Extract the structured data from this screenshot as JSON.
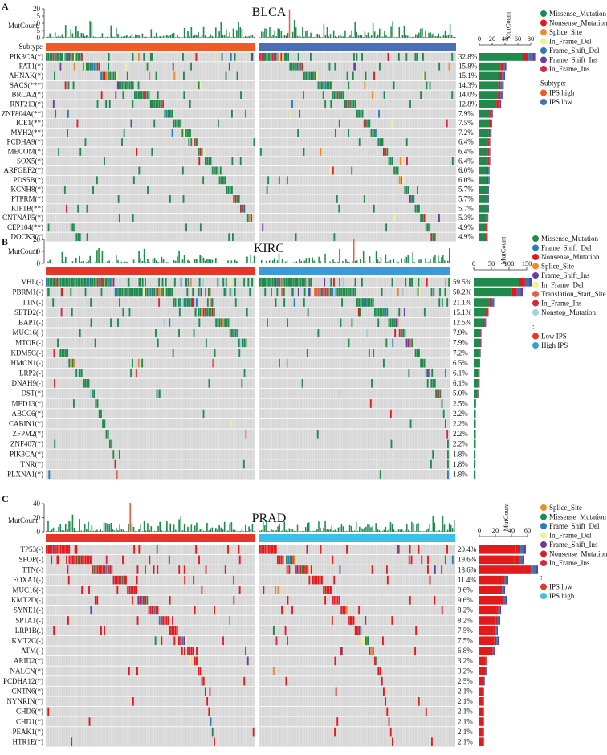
{
  "mutation_colors": {
    "Missense_Mutation": "#1f8a4c",
    "Nonsense_Mutation": "#e31a1c",
    "Splice_Site": "#f08a24",
    "In_Frame_Del": "#f2ef9a",
    "Frame_Shift_Del": "#2b7bba",
    "Frame_Shift_Ins": "#6a3d9a",
    "In_Frame_Ins": "#d7263d",
    "Translation_Start_Site": "#e0624d",
    "Nonstop_Mutation": "#a6cee3"
  },
  "chart_data": [
    {
      "type": "table",
      "panel": "A",
      "title": "BLCA",
      "mutcount_label": "MutCount",
      "mutcount_ticks": [
        "20",
        "15",
        "10",
        "5",
        "0"
      ],
      "subtype_label": "Subtype",
      "groups": [
        {
          "name": "IPS high",
          "color": "#f05a24"
        },
        {
          "name": "IPS low",
          "color": "#4a6fb8"
        }
      ],
      "genes": [
        "PIK3CA(*)",
        "FAT1(*)",
        "AHNAK(*)",
        "SACS(***)",
        "BRCA2(*)",
        "RNF213(*)",
        "ZNF804A(**)",
        "ICE1(**)",
        "MYH2(**)",
        "PCDHA9(*)",
        "MECOM(*)",
        "SOX5(*)",
        "ARFGEF2(*)",
        "PDS5B(*)",
        "KCNH8(*)",
        "PTPRM(*)",
        "KIF1B(**)",
        "CNTNAP5(*)",
        "CEP104(**)",
        "DOCK3(*)"
      ],
      "percents": [
        "32.8%",
        "15.8%",
        "15.1%",
        "14.3%",
        "14.0%",
        "12.8%",
        "7.9%",
        "7.5%",
        "7.2%",
        "6.4%",
        "6.4%",
        "6.4%",
        "6.0%",
        "6.0%",
        "5.7%",
        "5.7%",
        "5.7%",
        "5.3%",
        "4.9%",
        "4.9%"
      ],
      "bar_label": "MutCount",
      "bar_axis": {
        "min": 0,
        "max": 80,
        "ticks": [
          "0",
          "20",
          "40",
          "60",
          "80"
        ]
      },
      "bar_values": [
        87,
        42,
        40,
        38,
        37,
        34,
        21,
        20,
        19,
        17,
        17,
        17,
        16,
        16,
        15,
        15,
        15,
        14,
        13,
        13
      ],
      "legend_types": [
        "Missense_Mutation",
        "Nonsense_Mutation",
        "Splice_Site",
        "In_Frame_Del",
        "Frame_Shift_Del",
        "Frame_Shift_Ins",
        "In_Frame_Ins"
      ],
      "legend_group_title": "Subtype:"
    },
    {
      "type": "table",
      "panel": "B",
      "title": "KIRC",
      "mutcount_label": "MutCount",
      "mutcount_ticks": [
        "20",
        "10",
        "0"
      ],
      "groups": [
        {
          "name": "Low IPS",
          "color": "#e8352a"
        },
        {
          "name": "High IPS",
          "color": "#3c9ad6"
        }
      ],
      "genes": [
        "VHL(-)",
        "PBRM1(-)",
        "TTN(-)",
        "SETD2(-)",
        "BAP1(-)",
        "MUC16(-)",
        "MTOR(-)",
        "KDM5C(-)",
        "HMCN1(-)",
        "LRP2(-)",
        "DNAH9(-)",
        "DST(*)",
        "MED13(*)",
        "ABCC6(*)",
        "CABIN1(*)",
        "ZFPM2(*)",
        "ZNF407(*)",
        "PIK3CA(*)",
        "TNR(*)",
        "PLXNA1(*)"
      ],
      "percents": [
        "59.5%",
        "50.2%",
        "21.1%",
        "15.1%",
        "12.5%",
        "7.9%",
        "7.9%",
        "7.2%",
        "6.5%",
        "6.1%",
        "6.1%",
        "5.0%",
        "2.5%",
        "2.2%",
        "2.2%",
        "2.2%",
        "2.2%",
        "1.8%",
        "1.8%",
        "1.8%"
      ],
      "bar_label": "MutCount",
      "bar_axis": {
        "min": 0,
        "max": 150,
        "ticks": [
          "0",
          "50",
          "100",
          "150"
        ]
      },
      "bar_values": [
        165,
        139,
        58,
        42,
        35,
        22,
        22,
        20,
        18,
        17,
        17,
        14,
        7,
        6,
        6,
        6,
        6,
        5,
        5,
        5
      ],
      "legend_types": [
        "Missense_Mutation",
        "Frame_Shift_Del",
        "Nonsense_Mutation",
        "Splice_Site",
        "Frame_Shift_Ins",
        "In_Frame_Del",
        "Translation_Start_Site",
        "In_Frame_Ins",
        "Nonstop_Mutation"
      ],
      "legend_group_title": ":"
    },
    {
      "type": "table",
      "panel": "C",
      "title": "PRAD",
      "mutcount_label": "MutCount",
      "mutcount_ticks": [
        "40",
        "20",
        "0"
      ],
      "groups": [
        {
          "name": "IPS low",
          "color": "#e8352a"
        },
        {
          "name": "IPS high",
          "color": "#3cc0e8"
        }
      ],
      "genes": [
        "TP53(-)",
        "SPOP(-)",
        "TTN(-)",
        "FOXA1(-)",
        "MUC16(-)",
        "KMT2D(-)",
        "SYNE1(-)",
        "SPTA1(-)",
        "LRP1B(.)",
        "KMT2C(-)",
        "ATM(-)",
        "ARID2(*)",
        "NALCN(*)",
        "PCDHA12(*)",
        "CNTN6(*)",
        "NYNRIN(*)",
        "CHD6(*)",
        "CHD1(*)",
        "PEAK1(*)",
        "HTR1E(*)"
      ],
      "percents": [
        "20.4%",
        "19.6%",
        "18.6%",
        "11.4%",
        "9.6%",
        "9.6%",
        "8.2%",
        "8.2%",
        "7.5%",
        "7.5%",
        "6.8%",
        "3.2%",
        "3.2%",
        "2.5%",
        "2.1%",
        "2.1%",
        "2.1%",
        "2.1%",
        "2.1%",
        "2.1%"
      ],
      "bar_label": "MutCount",
      "bar_axis": {
        "min": 0,
        "max": 60,
        "ticks": [
          "0",
          "20",
          "40",
          "60"
        ]
      },
      "bar_values": [
        58,
        56,
        73,
        36,
        32,
        34,
        27,
        26,
        23,
        24,
        19,
        10,
        9,
        7,
        6,
        6,
        6,
        6,
        6,
        6
      ],
      "legend_types": [
        "Splice_Site",
        "Missense_Mutation",
        "Frame_Shift_Del",
        "In_Frame_Del",
        "Frame_Shift_Ins",
        "Nonsense_Mutation",
        "In_Frame_Ins"
      ],
      "legend_group_title": ":"
    }
  ]
}
